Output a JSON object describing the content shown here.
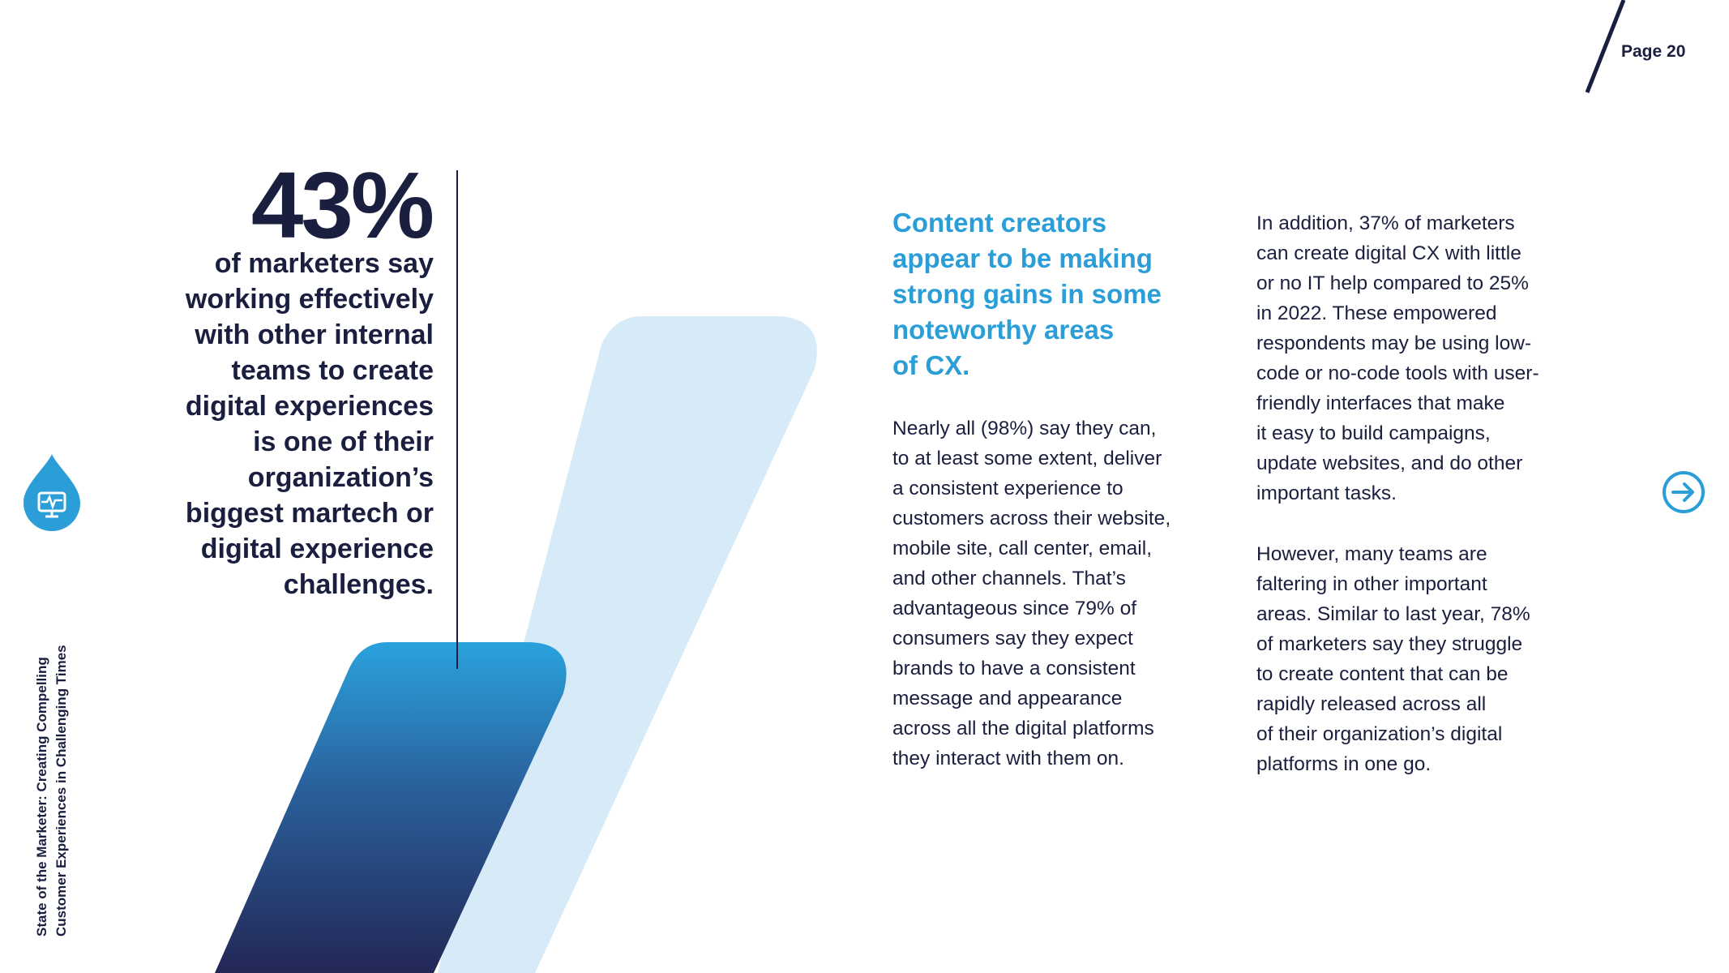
{
  "page": {
    "page_number": "Page 20"
  },
  "stat": {
    "value": "43%",
    "lines": [
      "of marketers say",
      "working effectively",
      "with other internal",
      "teams to create",
      "digital experiences",
      "is one of their",
      "organization’s",
      "biggest martech or",
      "digital experience",
      "challenges."
    ]
  },
  "sidebar": {
    "title_line1": "State of the Marketer: Creating Compelling",
    "title_line2": "Customer Experiences in Challenging Times",
    "logo_icon": "monitor-heartbeat-drop-icon"
  },
  "headline": {
    "lines": [
      "Content creators",
      "appear to be making",
      "strong gains in some",
      "noteworthy areas",
      "of CX."
    ]
  },
  "column1": {
    "lines": [
      "Nearly all (98%) say they can,",
      "to at least some extent, deliver",
      "a consistent experience to",
      "customers across their website,",
      "mobile site, call center, email,",
      "and other channels. That’s",
      "advantageous since 79% of",
      "consumers say they expect",
      "brands to have a consistent",
      "message and appearance",
      "across all the digital platforms",
      "they interact with them on."
    ]
  },
  "column2": {
    "para1": [
      "In addition, 37% of marketers",
      "can create digital CX with little",
      "or no IT help compared to 25%",
      "in 2022. These empowered",
      "respondents may be using low-",
      "code or no-code tools with user-",
      "friendly interfaces that make",
      "it easy to build campaigns,",
      "update websites, and do other",
      "important tasks."
    ],
    "para2": [
      "However, many teams are",
      "faltering in other important",
      "areas. Similar to last year, 78%",
      "of marketers say they struggle",
      "to create content that can be",
      "rapidly released across all",
      "of their organization’s digital",
      "platforms in one go."
    ]
  },
  "navigation": {
    "next_icon": "arrow-right-circle-icon"
  },
  "colors": {
    "navy": "#1b1f3f",
    "accent_blue": "#2b9ed8",
    "light_blue": "#d6eaf7"
  }
}
